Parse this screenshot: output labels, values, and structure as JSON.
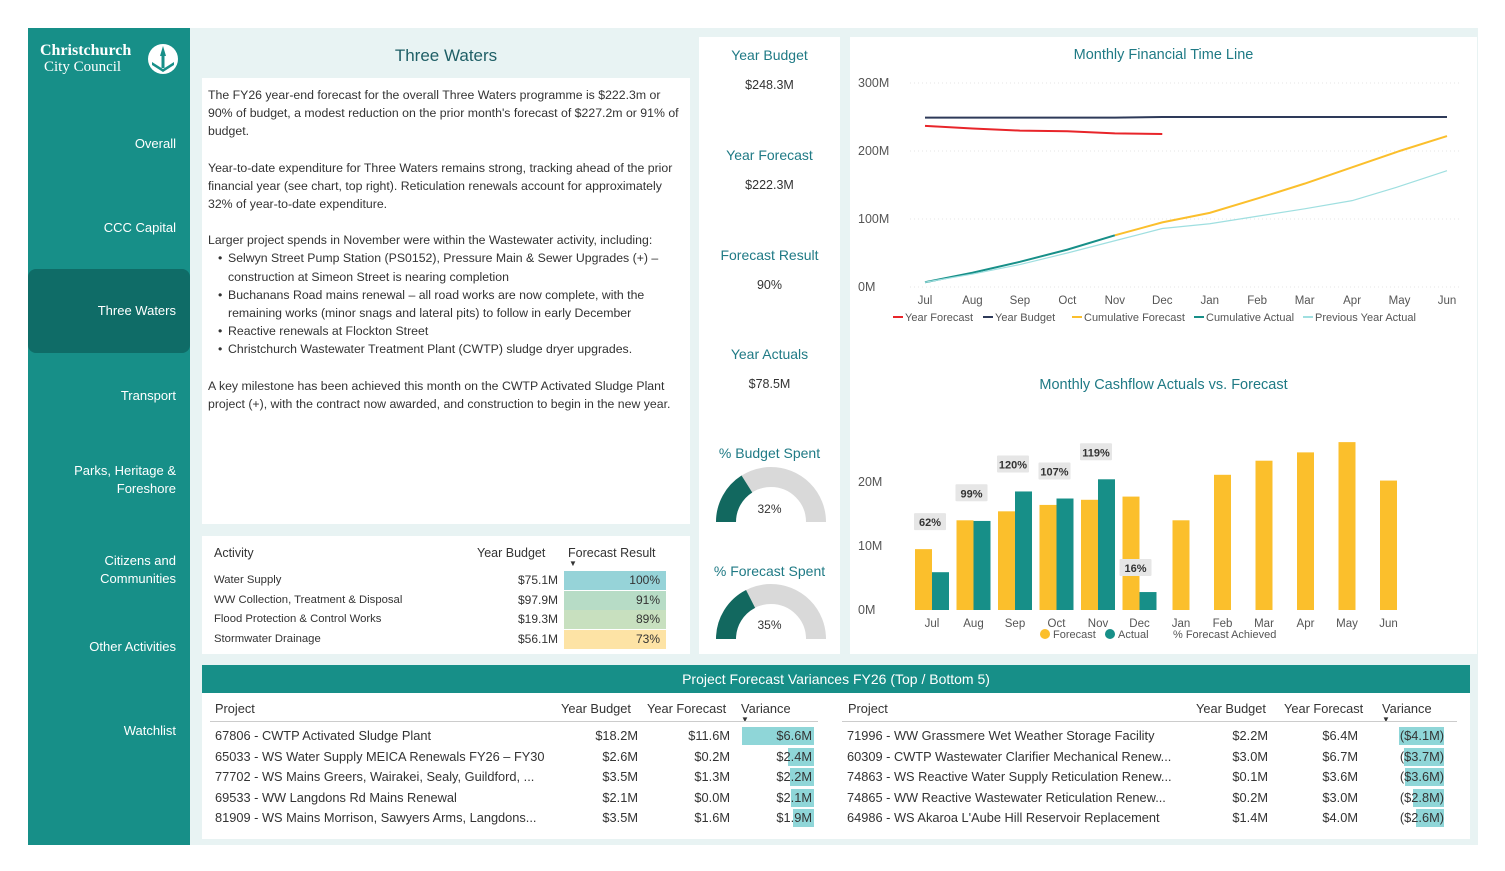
{
  "logo": {
    "line1": "Christchurch",
    "line2": "City Council"
  },
  "nav": [
    {
      "label": "Overall",
      "active": false
    },
    {
      "label": "CCC Capital",
      "active": false
    },
    {
      "label": "Three Waters",
      "active": true
    },
    {
      "label": "Transport",
      "active": false
    },
    {
      "label": "Parks, Heritage &\nForeshore",
      "active": false
    },
    {
      "label": "Citizens and\nCommunities",
      "active": false
    },
    {
      "label": "Other Activities",
      "active": false
    },
    {
      "label": "Watchlist",
      "active": false
    }
  ],
  "page_title": "Three Waters",
  "summary": {
    "p1": "The FY26 year-end forecast for the overall Three Waters programme is $222.3m or 90% of budget, a modest reduction on the prior month's forecast of $227.2m or 91% of budget.",
    "p2": "Year-to-date expenditure for Three Waters remains strong, tracking ahead of the prior financial year (see chart, top right).  Reticulation renewals account for approximately 32% of year-to-date expenditure.",
    "p3": "Larger project spends in November were within the Wastewater activity, including:",
    "bullets": [
      "Selwyn Street Pump Station (PS0152), Pressure Main & Sewer Upgrades (+) – construction at Simeon Street is nearing completion",
      "Buchanans Road mains renewal – all road works are now complete, with the remaining works (minor snags and lateral pits) to follow in early December",
      "Reactive renewals at Flockton Street",
      "Christchurch Wastewater Treatment Plant (CWTP) sludge dryer upgrades."
    ],
    "p4": "A key milestone has been achieved this month on the CWTP Activated Sludge Plant project (+), with the contract now awarded, and construction to begin in the new year."
  },
  "activity_table": {
    "headers": {
      "activity": "Activity",
      "year_budget": "Year Budget",
      "forecast_result": "Forecast Result"
    },
    "rows": [
      {
        "activity": "Water Supply",
        "year_budget": "$75.1M",
        "forecast_result": "100%",
        "pct": 1.0,
        "color": "#96d3d8"
      },
      {
        "activity": "WW Collection, Treatment & Disposal",
        "year_budget": "$97.9M",
        "forecast_result": "91%",
        "pct": 0.91,
        "color": "#b7dcc6"
      },
      {
        "activity": "Flood Protection & Control Works",
        "year_budget": "$19.3M",
        "forecast_result": "89%",
        "pct": 0.89,
        "color": "#c8e0bf"
      },
      {
        "activity": "Stormwater Drainage",
        "year_budget": "$56.1M",
        "forecast_result": "73%",
        "pct": 0.73,
        "color": "#fde3a5"
      }
    ]
  },
  "kpis": {
    "year_budget_label": "Year Budget",
    "year_budget": "$248.3M",
    "year_forecast_label": "Year Forecast",
    "year_forecast": "$222.3M",
    "forecast_result_label": "Forecast Result",
    "forecast_result": "90%",
    "year_actuals_label": "Year Actuals",
    "year_actuals": "$78.5M",
    "budget_spent_label": "% Budget Spent",
    "budget_spent": "32%",
    "budget_spent_frac": 0.32,
    "forecast_spent_label": "% Forecast Spent",
    "forecast_spent": "35%",
    "forecast_spent_frac": 0.35,
    "gauge_fill_color": "#12685f",
    "gauge_track_color": "#d9d9d9"
  },
  "chart_data": [
    {
      "type": "line",
      "title": "Monthly Financial Time Line",
      "x": [
        "Jul",
        "Aug",
        "Sep",
        "Oct",
        "Nov",
        "Dec",
        "Jan",
        "Feb",
        "Mar",
        "Apr",
        "May",
        "Jun"
      ],
      "yticks": [
        "0M",
        "100M",
        "200M",
        "300M"
      ],
      "ylim": [
        0,
        300
      ],
      "series": [
        {
          "name": "Year Forecast",
          "color": "#e8252a",
          "values": [
            237,
            233,
            230,
            229,
            226,
            225,
            null,
            null,
            null,
            null,
            null,
            null
          ]
        },
        {
          "name": "Year Budget",
          "color": "#2e3a59",
          "values": [
            249,
            249,
            249,
            249,
            249,
            250,
            250,
            250,
            250,
            250,
            250,
            250
          ]
        },
        {
          "name": "Cumulative Forecast",
          "color": "#fbbf2c",
          "values": [
            null,
            null,
            null,
            null,
            76,
            95,
            109,
            130,
            152,
            176,
            200,
            222
          ]
        },
        {
          "name": "Cumulative Actual",
          "color": "#178f88",
          "values": [
            7,
            21,
            37,
            55,
            76,
            null,
            null,
            null,
            null,
            null,
            null,
            null
          ]
        },
        {
          "name": "Previous Year Actual",
          "color": "#9fdfe0",
          "values": [
            7,
            19,
            33,
            50,
            68,
            86,
            93,
            104,
            115,
            127,
            148,
            171
          ]
        }
      ],
      "legend_position": "bottom"
    },
    {
      "type": "bar",
      "title": "Monthly Cashflow Actuals vs. Forecast",
      "categories": [
        "Jul",
        "Aug",
        "Sep",
        "Oct",
        "Nov",
        "Dec",
        "Jan",
        "Feb",
        "Mar",
        "Apr",
        "May",
        "Jun"
      ],
      "yticks": [
        "0M",
        "10M",
        "20M"
      ],
      "ylim": [
        0,
        27
      ],
      "series": [
        {
          "name": "Forecast",
          "color": "#fbbf2c",
          "values": [
            9.5,
            14.0,
            15.4,
            16.4,
            17.2,
            17.7,
            14.0,
            21.1,
            23.3,
            24.6,
            26.2,
            20.2
          ]
        },
        {
          "name": "Actual",
          "color": "#178f88",
          "values": [
            5.9,
            13.9,
            18.5,
            17.4,
            20.4,
            2.8,
            null,
            null,
            null,
            null,
            null,
            null
          ]
        }
      ],
      "achieved": [
        "62%",
        "99%",
        "120%",
        "107%",
        "119%",
        "16%",
        null,
        null,
        null,
        null,
        null,
        null
      ],
      "achieved_label": "% Forecast Achieved",
      "legend_position": "bottom"
    }
  ],
  "variances": {
    "title": "Project Forecast Variances FY26 (Top / Bottom 5)",
    "headers": {
      "project": "Project",
      "year_budget": "Year Budget",
      "year_forecast": "Year Forecast",
      "variance": "Variance"
    },
    "left": [
      {
        "project": "67806 - CWTP Activated Sludge Plant",
        "year_budget": "$18.2M",
        "year_forecast": "$11.6M",
        "variance": "$6.6M",
        "value": 6.6
      },
      {
        "project": "65033 - WS Water Supply MEICA Renewals FY26 – FY30",
        "year_budget": "$2.6M",
        "year_forecast": "$0.2M",
        "variance": "$2.4M",
        "value": 2.4
      },
      {
        "project": "77702 - WS Mains Greers, Wairakei, Sealy, Guildford, ...",
        "year_budget": "$3.5M",
        "year_forecast": "$1.3M",
        "variance": "$2.2M",
        "value": 2.2
      },
      {
        "project": "69533 - WW Langdons Rd Mains Renewal",
        "year_budget": "$2.1M",
        "year_forecast": "$0.0M",
        "variance": "$2.1M",
        "value": 2.1
      },
      {
        "project": "81909 - WS Mains Morrison, Sawyers Arms, Langdons...",
        "year_budget": "$3.5M",
        "year_forecast": "$1.6M",
        "variance": "$1.9M",
        "value": 1.9
      }
    ],
    "right": [
      {
        "project": "71996 - WW Grassmere Wet Weather Storage Facility",
        "year_budget": "$2.2M",
        "year_forecast": "$6.4M",
        "variance": "($4.1M)",
        "value": -4.1
      },
      {
        "project": "60309 - CWTP Wastewater Clarifier Mechanical Renew...",
        "year_budget": "$3.0M",
        "year_forecast": "$6.7M",
        "variance": "($3.7M)",
        "value": -3.7
      },
      {
        "project": "74863 - WS Reactive Water Supply Reticulation Renew...",
        "year_budget": "$0.1M",
        "year_forecast": "$3.6M",
        "variance": "($3.6M)",
        "value": -3.6
      },
      {
        "project": "74865 - WW Reactive Wastewater Reticulation Renew...",
        "year_budget": "$0.2M",
        "year_forecast": "$3.0M",
        "variance": "($2.8M)",
        "value": -2.8
      },
      {
        "project": "64986 - WS Akaroa L'Aube Hill Reservoir Replacement",
        "year_budget": "$1.4M",
        "year_forecast": "$4.0M",
        "variance": "($2.6M)",
        "value": -2.6
      }
    ],
    "bar_color": "#8fd6d8"
  }
}
